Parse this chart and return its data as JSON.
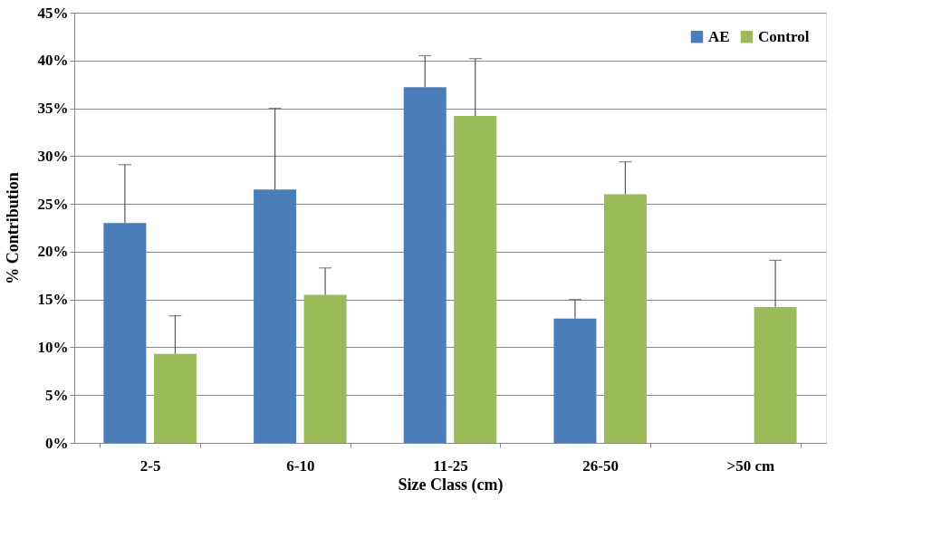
{
  "chart_data": {
    "type": "bar",
    "xlabel": "Size Class (cm)",
    "ylabel": "% Contribution",
    "categories": [
      "2-5",
      "6-10",
      "11-25",
      "26-50",
      ">50 cm"
    ],
    "series": [
      {
        "name": "AE",
        "color": "#4a7ebb",
        "values": [
          23,
          26.5,
          37.2,
          13,
          null
        ],
        "errors": [
          [
            23,
            29.1
          ],
          [
            26.5,
            35
          ],
          [
            37.2,
            40.5
          ],
          [
            13,
            15
          ],
          null
        ]
      },
      {
        "name": "Control",
        "color": "#9bbb59",
        "values": [
          9.3,
          15.5,
          34.2,
          26,
          14.2
        ],
        "errors": [
          [
            9.3,
            13.3
          ],
          [
            15.5,
            18.3
          ],
          [
            34.2,
            40.2
          ],
          [
            26,
            29.4
          ],
          [
            14.2,
            19.1
          ]
        ]
      }
    ],
    "ylim": [
      0,
      45
    ],
    "yticks": [
      {
        "value": 0,
        "label": "0%"
      },
      {
        "value": 5,
        "label": "5%"
      },
      {
        "value": 10,
        "label": "10%"
      },
      {
        "value": 15,
        "label": "15%"
      },
      {
        "value": 20,
        "label": "20%"
      },
      {
        "value": 25,
        "label": "25%"
      },
      {
        "value": 30,
        "label": "30%"
      },
      {
        "value": 35,
        "label": "35%"
      },
      {
        "value": 40,
        "label": "40%"
      },
      {
        "value": 45,
        "label": "45%"
      }
    ],
    "grid": "y",
    "legend": "top right"
  }
}
